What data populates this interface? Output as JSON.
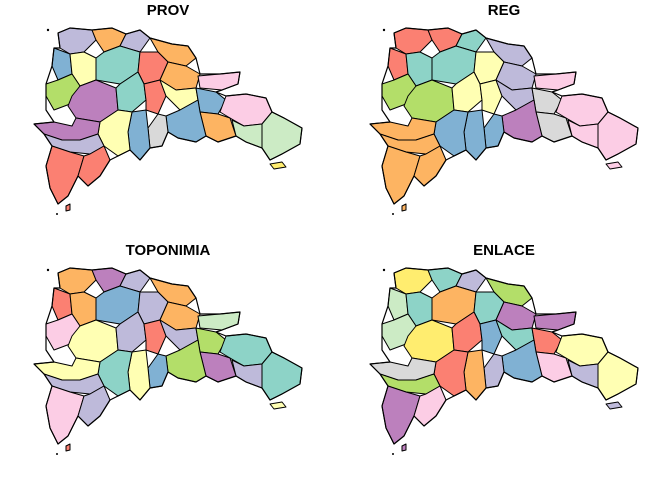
{
  "panels": [
    {
      "title": "PROV"
    },
    {
      "title": "REG"
    },
    {
      "title": "TOPONIMIA"
    },
    {
      "title": "ENLACE"
    }
  ],
  "palette": [
    "#fbb4ae",
    "#b3cde3",
    "#ccebc5",
    "#decbe4",
    "#fed9a6",
    "#ffffcc",
    "#e5d8bd",
    "#fddaec",
    "#f2f2f2"
  ],
  "colors": {
    "salmon": "#fb8072",
    "lavender": "#bebada",
    "teal": "#8dd3c7",
    "yellow": "#ffffb3",
    "orange": "#fdb462",
    "blue": "#80b1d3",
    "green": "#b3de69",
    "pink": "#fccde5",
    "grey": "#d9d9d9",
    "purple": "#bc80bd",
    "mint": "#ccebc5",
    "gold": "#ffed6f"
  }
}
